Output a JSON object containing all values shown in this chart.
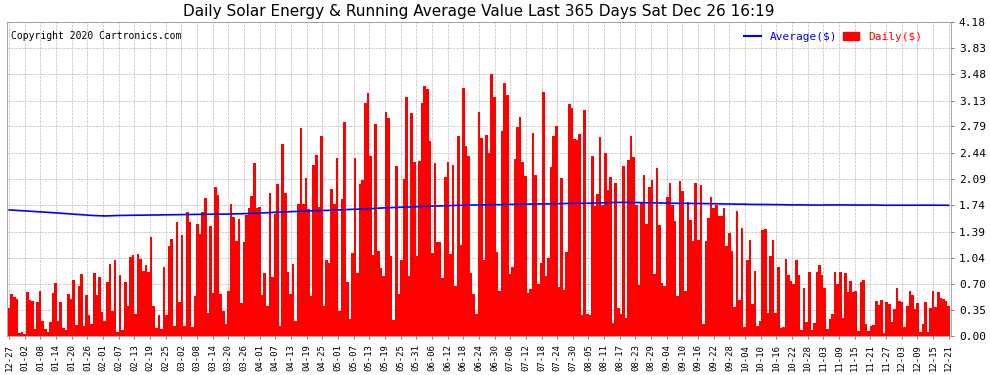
{
  "title": "Daily Solar Energy & Running Average Value Last 365 Days Sat Dec 26 16:19",
  "copyright": "Copyright 2020 Cartronics.com",
  "legend_avg": "Average($)",
  "legend_daily": "Daily($)",
  "bar_color": "#ff0000",
  "avg_color": "#0000ff",
  "background_color": "#ffffff",
  "plot_bg_color": "#ffffff",
  "grid_color": "#aaaaaa",
  "title_fontsize": 11,
  "ylabel_values": [
    0.0,
    0.35,
    0.7,
    1.04,
    1.39,
    1.74,
    2.09,
    2.44,
    2.79,
    3.13,
    3.48,
    3.83,
    4.18
  ],
  "ylim": [
    0.0,
    4.18
  ],
  "x_tick_labels": [
    "12-27",
    "01-02",
    "01-08",
    "01-14",
    "01-20",
    "01-26",
    "02-01",
    "02-07",
    "02-13",
    "02-19",
    "02-25",
    "03-02",
    "03-08",
    "03-14",
    "03-20",
    "03-26",
    "04-01",
    "04-07",
    "04-13",
    "04-19",
    "04-25",
    "05-01",
    "05-07",
    "05-13",
    "05-19",
    "05-25",
    "05-31",
    "06-06",
    "06-12",
    "06-18",
    "06-24",
    "06-30",
    "07-06",
    "07-12",
    "07-18",
    "07-24",
    "07-30",
    "08-05",
    "08-11",
    "08-17",
    "08-23",
    "08-29",
    "09-04",
    "09-10",
    "09-16",
    "09-22",
    "09-28",
    "10-04",
    "10-10",
    "10-16",
    "10-22",
    "10-28",
    "11-03",
    "11-09",
    "11-15",
    "11-21",
    "11-27",
    "12-03",
    "12-09",
    "12-15",
    "12-21"
  ]
}
